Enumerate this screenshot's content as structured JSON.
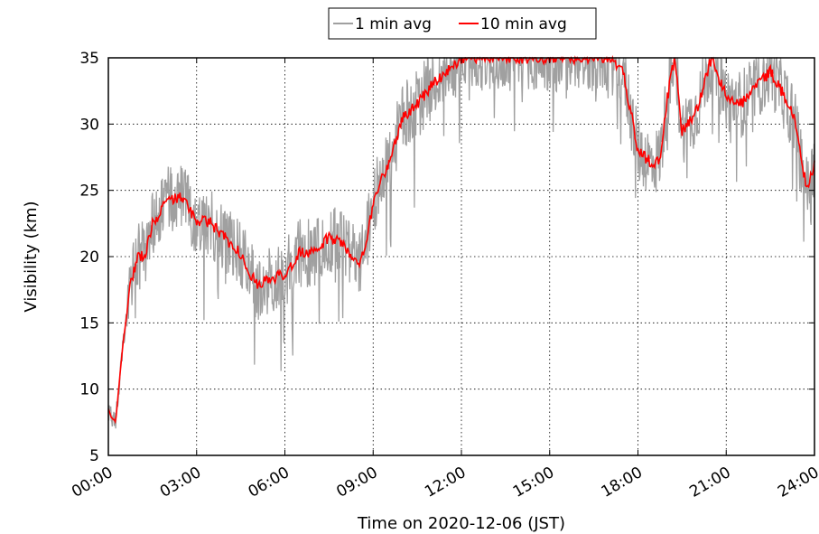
{
  "chart_data": {
    "type": "line",
    "title": "",
    "xlabel": "Time on 2020-12-06 (JST)",
    "ylabel": "Visibility (km)",
    "xlim": [
      0,
      24
    ],
    "ylim": [
      5,
      35
    ],
    "x_ticks": [
      0,
      3,
      6,
      9,
      12,
      15,
      18,
      21,
      24
    ],
    "x_tick_labels": [
      "00:00",
      "03:00",
      "06:00",
      "09:00",
      "12:00",
      "15:00",
      "18:00",
      "21:00",
      "24:00"
    ],
    "y_ticks": [
      5,
      10,
      15,
      20,
      25,
      30,
      35
    ],
    "y_tick_labels": [
      "5",
      "10",
      "15",
      "20",
      "25",
      "30",
      "35"
    ],
    "grid": true,
    "legend_placement": "top-center-outside",
    "x_units": "hours",
    "series": [
      {
        "name": "1 min avg",
        "color": "#a0a0a0",
        "render": "noisy",
        "spread_km": 2.6,
        "x": [
          0,
          0.1,
          0.25,
          0.5,
          0.75,
          1.0,
          1.25,
          1.5,
          2.0,
          2.5,
          2.75,
          3.0,
          3.5,
          4.0,
          4.5,
          5.0,
          5.5,
          6.0,
          6.5,
          7.0,
          7.5,
          8.0,
          8.5,
          8.75,
          9.0,
          9.25,
          9.5,
          10.0,
          10.5,
          11.0,
          11.5,
          12.0,
          13.0,
          14.0,
          15.0,
          16.0,
          17.0,
          17.5,
          17.75,
          18.0,
          18.5,
          18.75,
          19.0,
          19.25,
          19.5,
          20.0,
          20.5,
          21.0,
          21.5,
          22.0,
          22.5,
          23.0,
          23.25,
          23.5,
          23.75,
          24.0
        ],
        "y": [
          8.5,
          7.8,
          7.6,
          13.5,
          18.0,
          20.0,
          20.2,
          22.5,
          24.2,
          24.5,
          23.5,
          22.8,
          22.5,
          21.3,
          20.2,
          18.0,
          18.2,
          18.7,
          20.3,
          20.2,
          21.5,
          21.0,
          19.2,
          21.0,
          24.0,
          25.8,
          26.8,
          30.5,
          31.5,
          33.0,
          34.0,
          35.0,
          35.0,
          35.0,
          35.0,
          35.0,
          35.0,
          34.0,
          31.0,
          28.0,
          27.0,
          27.5,
          32.0,
          35.0,
          29.5,
          31.0,
          35.0,
          32.0,
          31.5,
          32.8,
          34.0,
          32.0,
          31.0,
          28.0,
          25.0,
          27.0
        ]
      },
      {
        "name": "10 min avg",
        "color": "#ff0000",
        "render": "smooth",
        "x": [
          0,
          0.1,
          0.25,
          0.5,
          0.75,
          1.0,
          1.25,
          1.5,
          2.0,
          2.5,
          2.75,
          3.0,
          3.5,
          4.0,
          4.5,
          5.0,
          5.5,
          6.0,
          6.5,
          7.0,
          7.5,
          8.0,
          8.5,
          8.75,
          9.0,
          9.25,
          9.5,
          10.0,
          10.5,
          11.0,
          11.5,
          12.0,
          13.0,
          14.0,
          15.0,
          16.0,
          17.0,
          17.5,
          17.75,
          18.0,
          18.5,
          18.75,
          19.0,
          19.25,
          19.5,
          20.0,
          20.5,
          21.0,
          21.5,
          22.0,
          22.5,
          23.0,
          23.25,
          23.5,
          23.75,
          24.0
        ],
        "y": [
          8.5,
          7.8,
          7.6,
          13.5,
          18.0,
          20.0,
          20.2,
          22.5,
          24.2,
          24.5,
          23.5,
          22.8,
          22.5,
          21.3,
          20.2,
          18.0,
          18.2,
          18.7,
          20.3,
          20.2,
          21.5,
          21.0,
          19.2,
          21.0,
          24.0,
          25.8,
          26.8,
          30.5,
          31.5,
          33.0,
          34.0,
          35.0,
          35.0,
          35.0,
          35.0,
          35.0,
          35.0,
          34.0,
          31.0,
          28.0,
          27.0,
          27.5,
          32.0,
          35.0,
          29.5,
          31.0,
          35.0,
          32.0,
          31.5,
          32.8,
          34.0,
          32.0,
          31.0,
          28.0,
          25.0,
          27.0
        ]
      }
    ]
  }
}
